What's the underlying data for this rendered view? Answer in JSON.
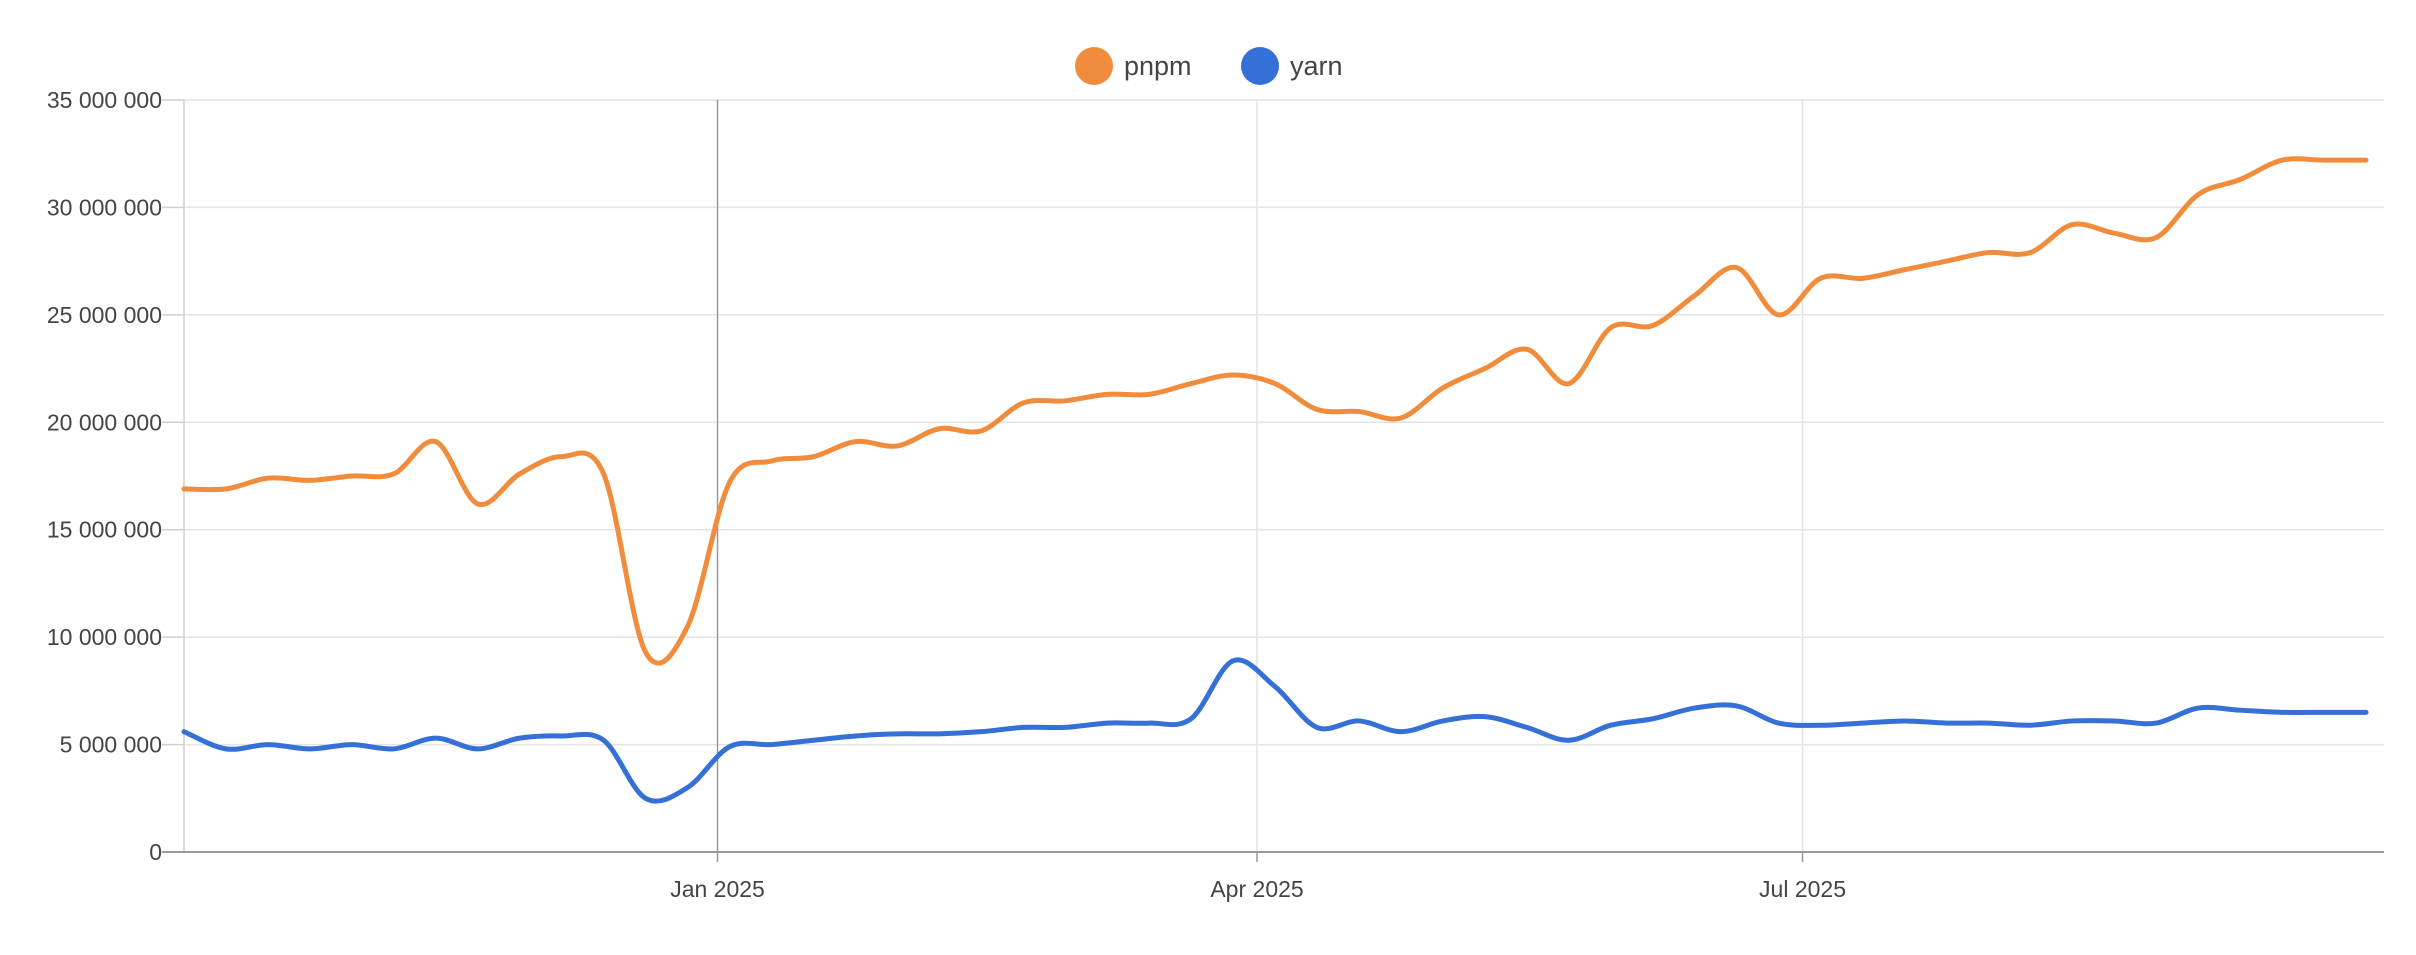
{
  "chart_data": {
    "type": "line",
    "title": "",
    "xlabel": "",
    "ylabel": "",
    "legend_position": "top-center",
    "grid": true,
    "ylim": [
      0,
      35000000
    ],
    "y_ticks": [
      0,
      5000000,
      10000000,
      15000000,
      20000000,
      25000000,
      30000000,
      35000000
    ],
    "y_tick_labels": [
      "0",
      "5 000 000",
      "10 000 000",
      "15 000 000",
      "20 000 000",
      "25 000 000",
      "30 000 000",
      "35 000 000"
    ],
    "x_range": [
      "2024-10-04",
      "2025-10-06"
    ],
    "x_ticks": [
      {
        "date": "2025-01-01",
        "label": "Jan 2025"
      },
      {
        "date": "2025-04-01",
        "label": "Apr 2025"
      },
      {
        "date": "2025-07-01",
        "label": "Jul 2025"
      }
    ],
    "x": [
      "2024-10-04",
      "2024-10-11",
      "2024-10-18",
      "2024-10-25",
      "2024-11-01",
      "2024-11-08",
      "2024-11-15",
      "2024-11-22",
      "2024-11-29",
      "2024-12-06",
      "2024-12-13",
      "2024-12-20",
      "2024-12-27",
      "2025-01-03",
      "2025-01-10",
      "2025-01-17",
      "2025-01-24",
      "2025-01-31",
      "2025-02-07",
      "2025-02-14",
      "2025-02-21",
      "2025-02-28",
      "2025-03-07",
      "2025-03-14",
      "2025-03-21",
      "2025-03-28",
      "2025-04-04",
      "2025-04-11",
      "2025-04-18",
      "2025-04-25",
      "2025-05-02",
      "2025-05-09",
      "2025-05-16",
      "2025-05-23",
      "2025-05-30",
      "2025-06-06",
      "2025-06-13",
      "2025-06-20",
      "2025-06-27",
      "2025-07-04",
      "2025-07-11",
      "2025-07-18",
      "2025-07-25",
      "2025-08-01",
      "2025-08-08",
      "2025-08-15",
      "2025-08-22",
      "2025-08-29",
      "2025-09-05",
      "2025-09-12",
      "2025-09-19",
      "2025-09-26",
      "2025-10-03"
    ],
    "series": [
      {
        "name": "pnpm",
        "color": "#f08c3c",
        "values": [
          16900000,
          16900000,
          17400000,
          17300000,
          17500000,
          17600000,
          19100000,
          16200000,
          17600000,
          18400000,
          17600000,
          9300000,
          10500000,
          17200000,
          18200000,
          18400000,
          19100000,
          18900000,
          19700000,
          19600000,
          20900000,
          21000000,
          21300000,
          21300000,
          21800000,
          22200000,
          21800000,
          20600000,
          20500000,
          20200000,
          21600000,
          22500000,
          23400000,
          21800000,
          24400000,
          24500000,
          25900000,
          27200000,
          25000000,
          26700000,
          26700000,
          27100000,
          27500000,
          27900000,
          27900000,
          29200000,
          28800000,
          28600000,
          30600000,
          31300000,
          32200000,
          32200000,
          32200000
        ]
      },
      {
        "name": "yarn",
        "color": "#3470d5",
        "values": [
          5600000,
          4800000,
          5000000,
          4800000,
          5000000,
          4800000,
          5300000,
          4800000,
          5300000,
          5400000,
          5200000,
          2500000,
          3000000,
          4900000,
          5000000,
          5200000,
          5400000,
          5500000,
          5500000,
          5600000,
          5800000,
          5800000,
          6000000,
          6000000,
          6200000,
          8900000,
          7700000,
          5800000,
          6100000,
          5600000,
          6100000,
          6300000,
          5800000,
          5200000,
          5900000,
          6200000,
          6700000,
          6800000,
          6000000,
          5900000,
          6000000,
          6100000,
          6000000,
          6000000,
          5900000,
          6100000,
          6100000,
          6000000,
          6700000,
          6600000,
          6500000,
          6500000,
          6500000
        ]
      }
    ]
  }
}
